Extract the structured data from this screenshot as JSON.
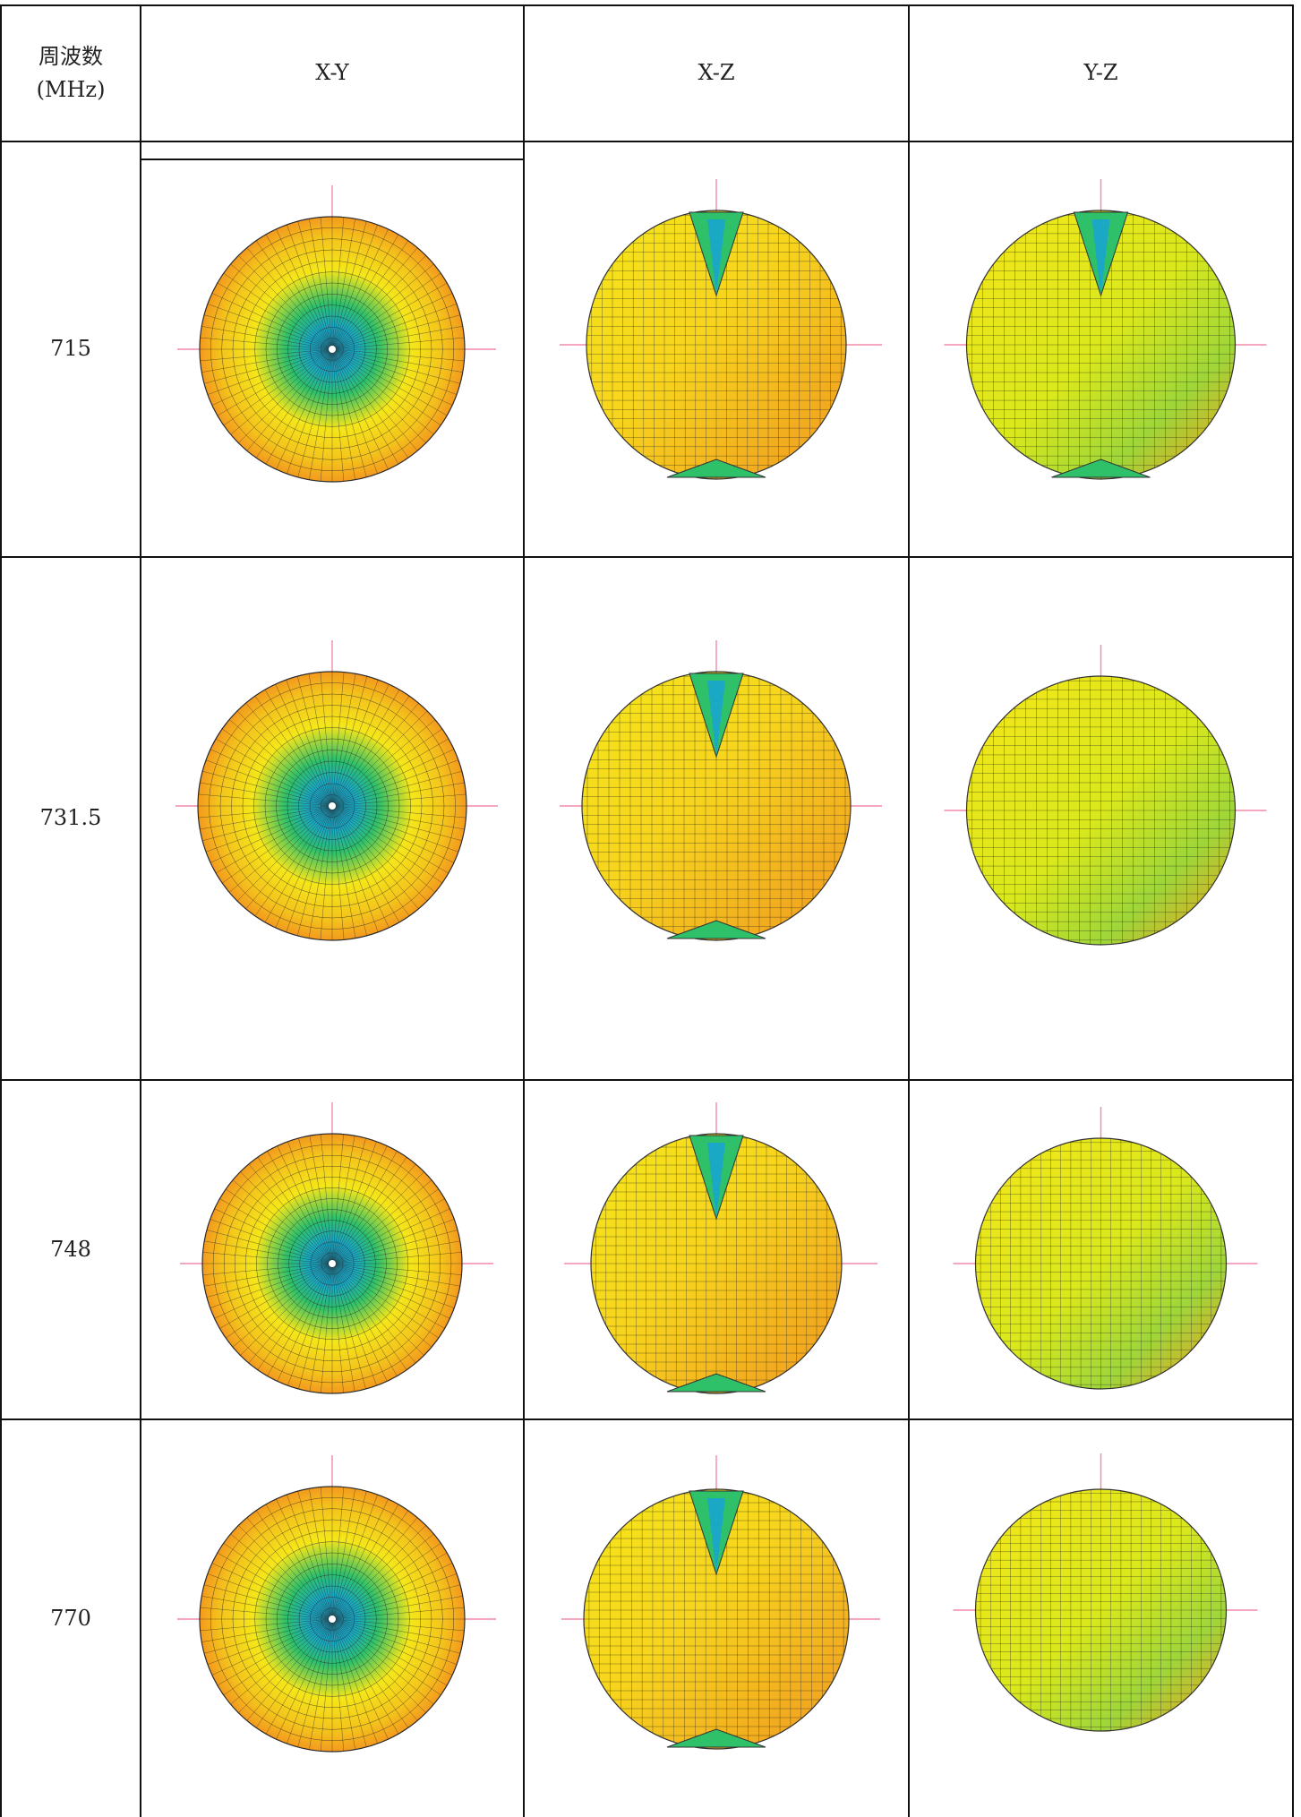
{
  "table": {
    "header": {
      "freq_label_line1": "周波数",
      "freq_label_line2": "(MHz)",
      "col_xy": "X-Y",
      "col_xz": "X-Z",
      "col_yz": "Y-Z"
    },
    "rows": [
      {
        "freq": "715"
      },
      {
        "freq": "731.5"
      },
      {
        "freq": "748"
      },
      {
        "freq": "770"
      }
    ]
  },
  "colors": {
    "high_gain": "#f39a1e",
    "mid_gain": "#f5e61a",
    "low_gain": "#2fc06a",
    "null": "#1aa8c4",
    "axis": "#f08aa8"
  }
}
